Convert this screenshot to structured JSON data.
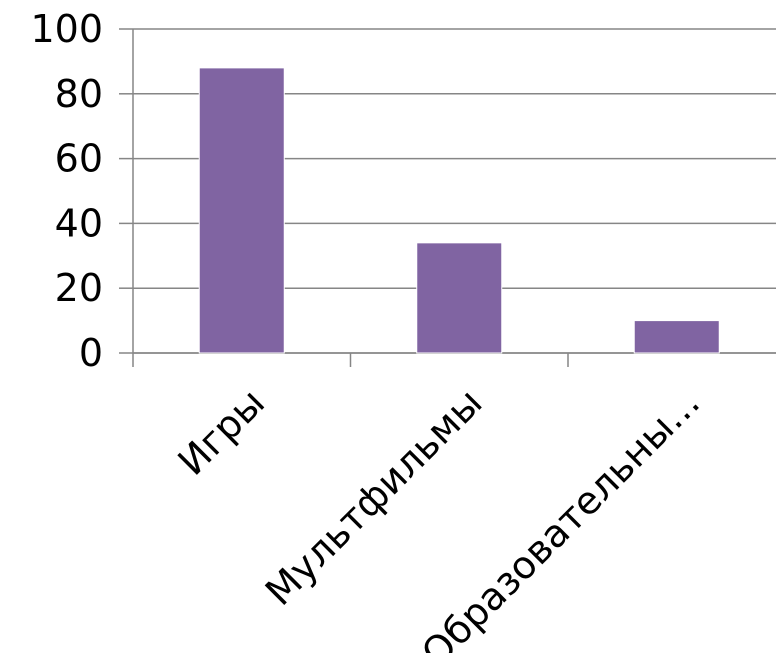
{
  "chart_data": {
    "type": "bar",
    "categories": [
      "Игры",
      "Мультфильмы",
      "Образовательны..."
    ],
    "values": [
      88,
      34,
      10
    ],
    "ylim": [
      0,
      100
    ],
    "yticks": [
      0,
      20,
      40,
      60,
      80,
      100
    ],
    "grid": true,
    "legend": "none",
    "bar_color": "#8064A2",
    "axis_color": "#868686",
    "grid_color": "#868686"
  }
}
